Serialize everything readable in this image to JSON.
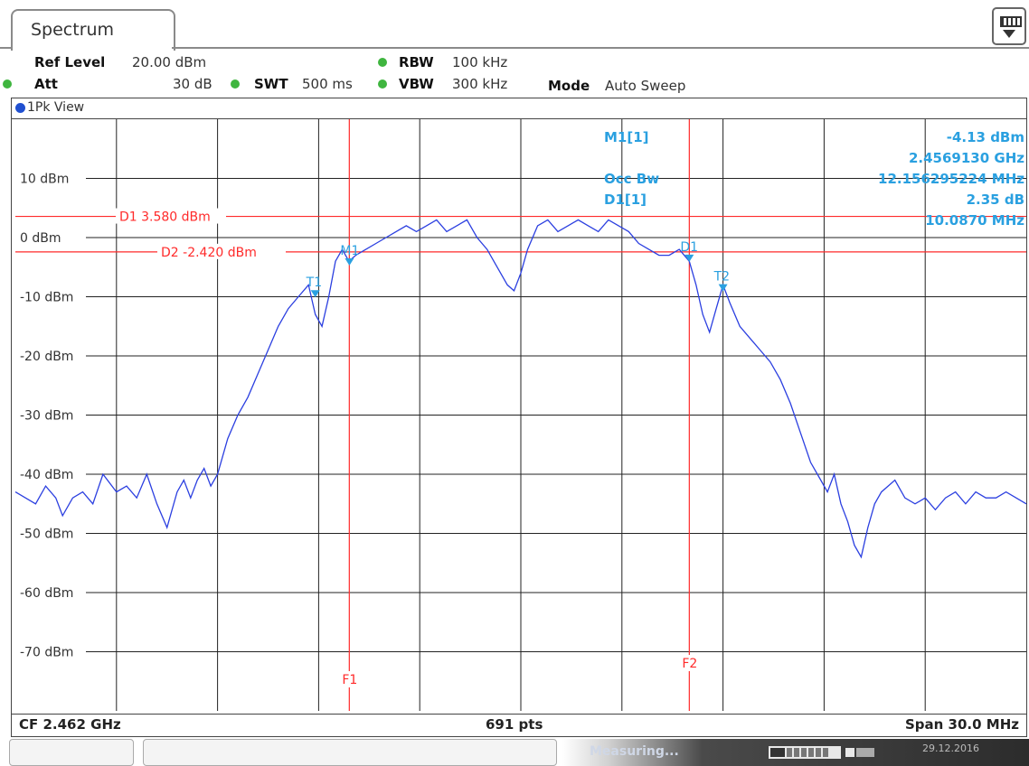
{
  "tab": {
    "title": "Spectrum"
  },
  "params": {
    "ref_level_label": "Ref Level",
    "ref_level_value": "20.00 dBm",
    "att_label": "Att",
    "att_value": "30 dB",
    "swt_label": "SWT",
    "swt_value": "500 ms",
    "rbw_label": "RBW",
    "rbw_value": "100 kHz",
    "vbw_label": "VBW",
    "vbw_value": "300 kHz",
    "mode_label": "Mode",
    "mode_value": "Auto Sweep"
  },
  "view": {
    "label": "1Pk View"
  },
  "footer": {
    "cf": "CF 2.462 GHz",
    "pts": "691 pts",
    "span": "Span 30.0 MHz"
  },
  "status": {
    "measuring": "Measuring...",
    "date": "29.12.2016"
  },
  "colors": {
    "trace": "#2b3fe0",
    "marker": "#2aa0e0",
    "line": "#ff2a2a",
    "grid": "#222222"
  },
  "chart_data": {
    "type": "line",
    "title": "",
    "xlabel": "",
    "ylabel": "",
    "xlim": [
      2447.0,
      2477.0
    ],
    "ylim": [
      -80,
      20
    ],
    "x_unit": "MHz",
    "yticks": [
      {
        "v": 10,
        "label": "10 dBm"
      },
      {
        "v": 0,
        "label": "0 dBm"
      },
      {
        "v": -10,
        "label": "-10 dBm"
      },
      {
        "v": -20,
        "label": "-20 dBm"
      },
      {
        "v": -30,
        "label": "-30 dBm"
      },
      {
        "v": -40,
        "label": "-40 dBm"
      },
      {
        "v": -50,
        "label": "-50 dBm"
      },
      {
        "v": -60,
        "label": "-60 dBm"
      },
      {
        "v": -70,
        "label": "-70 dBm"
      }
    ],
    "grid": true,
    "hlines": [
      {
        "name": "D1",
        "label": "D1  3.580 dBm",
        "value": 3.58
      },
      {
        "name": "D2",
        "label": "D2  -2.420 dBm",
        "value": -2.42
      }
    ],
    "vlines": [
      {
        "name": "F1",
        "label": "F1",
        "x": 2456.91
      },
      {
        "name": "F2",
        "label": "F2",
        "x": 2467.0
      }
    ],
    "markers": [
      {
        "name": "M1",
        "x": 2456.913,
        "y": -4.13
      },
      {
        "name": "D1",
        "x": 2467.0,
        "y": -3.5
      },
      {
        "name": "T1",
        "x": 2455.9,
        "y": -9.5
      },
      {
        "name": "T2",
        "x": 2468.0,
        "y": -8.5
      }
    ],
    "marker_table": [
      {
        "label": "M1[1]",
        "value1": "-4.13 dBm",
        "value2": "2.4569130 GHz"
      },
      {
        "label": "Occ Bw",
        "value1": "12.156295224 MHz",
        "value2": ""
      },
      {
        "label": "D1[1]",
        "value1": "2.35 dB",
        "value2": "10.0870 MHz"
      }
    ],
    "series": [
      {
        "x": [
          2447.0,
          2447.3,
          2447.6,
          2447.9,
          2448.2,
          2448.4,
          2448.7,
          2449.0,
          2449.3,
          2449.6,
          2450.0,
          2450.3,
          2450.6,
          2450.9,
          2451.2,
          2451.5,
          2451.8,
          2452.0,
          2452.2,
          2452.4,
          2452.6,
          2452.8,
          2453.0,
          2453.3,
          2453.6,
          2453.9,
          2454.2,
          2454.5,
          2454.8,
          2455.1,
          2455.4,
          2455.7,
          2455.9,
          2456.1,
          2456.3,
          2456.5,
          2456.7,
          2456.9,
          2457.1,
          2457.4,
          2457.7,
          2458.0,
          2458.3,
          2458.6,
          2458.9,
          2459.2,
          2459.5,
          2459.8,
          2460.1,
          2460.4,
          2460.7,
          2461.0,
          2461.3,
          2461.6,
          2461.8,
          2462.0,
          2462.2,
          2462.5,
          2462.8,
          2463.1,
          2463.4,
          2463.7,
          2464.0,
          2464.3,
          2464.6,
          2464.9,
          2465.2,
          2465.5,
          2465.8,
          2466.1,
          2466.4,
          2466.7,
          2467.0,
          2467.2,
          2467.4,
          2467.6,
          2467.8,
          2468.0,
          2468.2,
          2468.5,
          2468.8,
          2469.1,
          2469.4,
          2469.7,
          2470.0,
          2470.3,
          2470.6,
          2470.9,
          2471.1,
          2471.3,
          2471.5,
          2471.7,
          2471.9,
          2472.1,
          2472.3,
          2472.5,
          2472.7,
          2472.9,
          2473.1,
          2473.4,
          2473.7,
          2474.0,
          2474.3,
          2474.6,
          2474.9,
          2475.2,
          2475.5,
          2475.8,
          2476.1,
          2476.4,
          2476.7,
          2477.0
        ],
        "values": [
          -43,
          -44,
          -45,
          -42,
          -44,
          -47,
          -44,
          -43,
          -45,
          -40,
          -43,
          -42,
          -44,
          -40,
          -45,
          -49,
          -43,
          -41,
          -44,
          -41,
          -39,
          -42,
          -40,
          -34,
          -30,
          -27,
          -23,
          -19,
          -15,
          -12,
          -10,
          -8,
          -13,
          -15,
          -10,
          -4,
          -2,
          -4,
          -3,
          -2,
          -1,
          0,
          1,
          2,
          1,
          2,
          3,
          1,
          2,
          3,
          0,
          -2,
          -5,
          -8,
          -9,
          -6,
          -2,
          2,
          3,
          1,
          2,
          3,
          2,
          1,
          3,
          2,
          1,
          -1,
          -2,
          -3,
          -3,
          -2,
          -4,
          -8,
          -13,
          -16,
          -12,
          -8,
          -11,
          -15,
          -17,
          -19,
          -21,
          -24,
          -28,
          -33,
          -38,
          -41,
          -43,
          -40,
          -45,
          -48,
          -52,
          -54,
          -49,
          -45,
          -43,
          -42,
          -41,
          -44,
          -45,
          -44,
          -46,
          -44,
          -43,
          -45,
          -43,
          -44,
          -44,
          -43,
          -44,
          -45
        ]
      }
    ]
  }
}
